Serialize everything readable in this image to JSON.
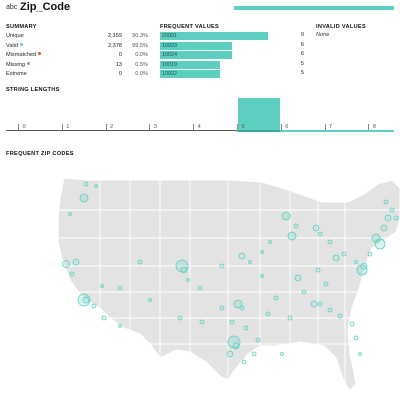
{
  "header": {
    "type_badge": "abc",
    "field_name": "Zip_Code"
  },
  "summary": {
    "title": "SUMMARY",
    "rows": [
      {
        "label": "Unique",
        "count": "2,159",
        "pct": "90.3%",
        "dot": ""
      },
      {
        "label": "Valid",
        "count": "2,378",
        "pct": "99.5%",
        "dot": "#5ccfc0"
      },
      {
        "label": "Mismatched",
        "count": "0",
        "pct": "0.0%",
        "dot": "#e0524a"
      },
      {
        "label": "Missing",
        "count": "13",
        "pct": "0.5%",
        "dot": "#9a9a9a"
      },
      {
        "label": "Extreme",
        "count": "0",
        "pct": "0.0%",
        "dot": ""
      }
    ]
  },
  "frequent_values": {
    "title": "FREQUENT VALUES",
    "max": 9,
    "items": [
      {
        "value": "20001",
        "count": 9
      },
      {
        "value": "10023",
        "count": 6
      },
      {
        "value": "10024",
        "count": 6
      },
      {
        "value": "10019",
        "count": 5
      },
      {
        "value": "10022",
        "count": 5
      }
    ]
  },
  "invalid_values": {
    "title": "INVALID VALUES",
    "none_text": "None"
  },
  "string_lengths": {
    "title": "STRING LENGTHS",
    "ticks": [
      "0",
      "1",
      "2",
      "3",
      "4",
      "5",
      "6",
      "7",
      "8"
    ],
    "highlight_bin": "5"
  },
  "map": {
    "title": "FREQUENT ZIP CODES",
    "accent": "#5ccfc0",
    "land": "#e3e3e3",
    "border": "#ffffff"
  }
}
